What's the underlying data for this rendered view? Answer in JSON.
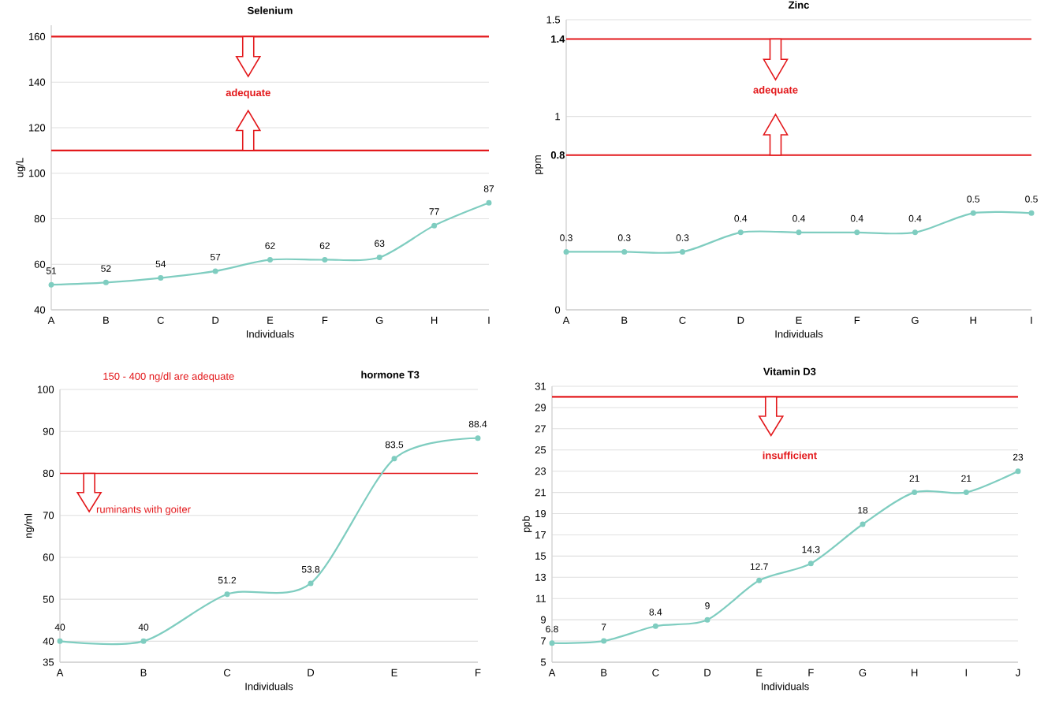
{
  "chart_data": [
    {
      "type": "line",
      "title": "Selenium",
      "xlabel": "Individuals",
      "ylabel": "ug/L",
      "categories": [
        "A",
        "B",
        "C",
        "D",
        "E",
        "F",
        "G",
        "H",
        "I"
      ],
      "series": [
        {
          "color": "#7fcdc0",
          "values": [
            51,
            52,
            54,
            57,
            62,
            62,
            63,
            77,
            87
          ]
        }
      ],
      "ylim": [
        40,
        165
      ],
      "yticks": [
        40,
        60,
        80,
        100,
        120,
        140,
        160
      ],
      "grid": "y",
      "marker": "circle",
      "data_labels": true,
      "ref_lines": [
        {
          "axis": "y",
          "value": 160,
          "color": "#e3191c"
        },
        {
          "axis": "y",
          "value": 110,
          "color": "#e3191c"
        }
      ],
      "annotations": [
        "adequate"
      ]
    },
    {
      "type": "line",
      "title": "Zinc",
      "xlabel": "Individuals",
      "ylabel": "ppm",
      "categories": [
        "A",
        "B",
        "C",
        "D",
        "E",
        "F",
        "G",
        "H",
        "I"
      ],
      "series": [
        {
          "color": "#7fcdc0",
          "values": [
            0.3,
            0.3,
            0.3,
            0.4,
            0.4,
            0.4,
            0.4,
            0.5,
            0.5
          ]
        }
      ],
      "ylim": [
        0,
        1.5
      ],
      "yticks": [
        0,
        1,
        1.5
      ],
      "grid": "y",
      "marker": "circle",
      "data_labels": true,
      "ref_lines": [
        {
          "axis": "y",
          "value": 1.4,
          "label": "1.4",
          "color": "#e3191c"
        },
        {
          "axis": "y",
          "value": 0.8,
          "label": "0.8",
          "color": "#e3191c"
        }
      ],
      "annotations": [
        "adequate"
      ]
    },
    {
      "type": "line",
      "title": "hormone T3",
      "xlabel": "Individuals",
      "ylabel": "ng/ml",
      "categories": [
        "A",
        "B",
        "C",
        "D",
        "E",
        "F"
      ],
      "series": [
        {
          "color": "#7fcdc0",
          "values": [
            40,
            40,
            51.2,
            53.8,
            83.5,
            88.4
          ]
        }
      ],
      "ylim": [
        35,
        100
      ],
      "yticks": [
        35,
        40,
        50,
        60,
        70,
        80,
        90,
        100
      ],
      "grid": "y",
      "marker": "circle",
      "data_labels": true,
      "ref_lines": [
        {
          "axis": "y",
          "value": 80,
          "label": "ruminants with goiter",
          "color": "#e3191c"
        }
      ],
      "annotations": [
        "150 - 400 ng/dl are adequate"
      ]
    },
    {
      "type": "line",
      "title": "Vitamin D3",
      "xlabel": "Individuals",
      "ylabel": "ppb",
      "categories": [
        "A",
        "B",
        "C",
        "D",
        "E",
        "F",
        "G",
        "H",
        "I",
        "J"
      ],
      "series": [
        {
          "color": "#7fcdc0",
          "values": [
            6.8,
            7,
            8.4,
            9,
            12.7,
            14.3,
            18,
            21,
            21,
            23
          ]
        }
      ],
      "ylim": [
        5,
        31
      ],
      "yticks": [
        5,
        7,
        9,
        11,
        13,
        15,
        17,
        19,
        21,
        23,
        25,
        27,
        29,
        31
      ],
      "grid": "y",
      "marker": "circle",
      "data_labels": true,
      "ref_lines": [
        {
          "axis": "y",
          "value": 30,
          "color": "#e3191c"
        }
      ],
      "annotations": [
        "insufficient"
      ]
    }
  ]
}
